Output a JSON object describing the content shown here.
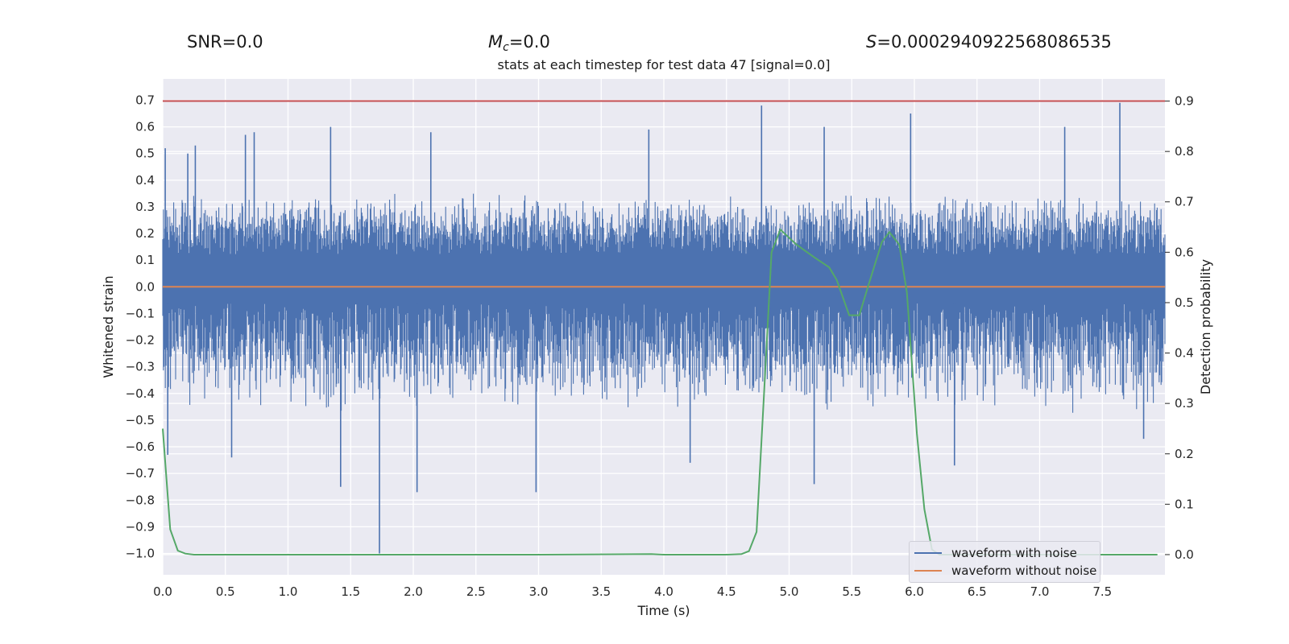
{
  "header": {
    "snr_label": "SNR=0.0",
    "mc_symbol": "M",
    "mc_subscript": "c",
    "mc_value": "=0.0",
    "s_symbol": "S",
    "s_value": "=0.0002940922568086535"
  },
  "chart_data": {
    "type": "line",
    "title": "stats at each timestep for test data 47 [signal=0.0]",
    "xlabel": "Time (s)",
    "ylabel": "Whitened strain",
    "y2label": "Detection probability",
    "xlim": [
      0.0,
      8.0
    ],
    "ylim": [
      -1.08,
      0.78
    ],
    "y2lim": [
      -0.04,
      0.944
    ],
    "xticks": [
      "0.0",
      "0.5",
      "1.0",
      "1.5",
      "2.0",
      "2.5",
      "3.0",
      "3.5",
      "4.0",
      "4.5",
      "5.0",
      "5.5",
      "6.0",
      "6.5",
      "7.0",
      "7.5"
    ],
    "yticks": [
      "0.7",
      "0.6",
      "0.5",
      "0.4",
      "0.3",
      "0.2",
      "0.1",
      "0.0",
      "−0.1",
      "−0.2",
      "−0.3",
      "−0.4",
      "−0.5",
      "−0.6",
      "−0.7",
      "−0.8",
      "−0.9",
      "−1.0"
    ],
    "y2ticks": [
      "0.9",
      "0.8",
      "0.7",
      "0.6",
      "0.5",
      "0.4",
      "0.3",
      "0.2",
      "0.1",
      "0.0"
    ],
    "grid": true,
    "legend_position": "bottom-right",
    "series": [
      {
        "name": "waveform with noise",
        "color": "#4c72b0",
        "axis": "left",
        "note_type": "dense noise",
        "envelope": {
          "core_min": -0.06,
          "core_max": 0.12,
          "typical_min": -0.42,
          "typical_max": 0.32
        },
        "spikes": [
          {
            "x": 0.02,
            "y": 0.52
          },
          {
            "x": 0.2,
            "y": 0.5
          },
          {
            "x": 0.26,
            "y": 0.53
          },
          {
            "x": 0.66,
            "y": 0.57
          },
          {
            "x": 0.73,
            "y": 0.58
          },
          {
            "x": 1.34,
            "y": 0.6
          },
          {
            "x": 2.14,
            "y": 0.58
          },
          {
            "x": 3.88,
            "y": 0.59
          },
          {
            "x": 4.78,
            "y": 0.68
          },
          {
            "x": 5.28,
            "y": 0.6
          },
          {
            "x": 5.97,
            "y": 0.65
          },
          {
            "x": 7.2,
            "y": 0.6
          },
          {
            "x": 7.64,
            "y": 0.69
          },
          {
            "x": 0.04,
            "y": -0.63
          },
          {
            "x": 0.55,
            "y": -0.64
          },
          {
            "x": 1.42,
            "y": -0.75
          },
          {
            "x": 1.73,
            "y": -1.0
          },
          {
            "x": 2.03,
            "y": -0.77
          },
          {
            "x": 2.98,
            "y": -0.77
          },
          {
            "x": 4.21,
            "y": -0.66
          },
          {
            "x": 5.2,
            "y": -0.74
          },
          {
            "x": 6.32,
            "y": -0.67
          },
          {
            "x": 7.83,
            "y": -0.57
          }
        ]
      },
      {
        "name": "waveform without noise",
        "color": "#dd8452",
        "axis": "left",
        "x": [
          0.0,
          8.0
        ],
        "y": [
          0.0,
          0.0
        ]
      },
      {
        "color": "#55a868",
        "axis": "right",
        "x": [
          0.0,
          0.06,
          0.12,
          0.18,
          0.25,
          0.5,
          1.0,
          2.0,
          3.0,
          3.9,
          4.0,
          4.5,
          4.62,
          4.68,
          4.74,
          4.8,
          4.86,
          4.93,
          5.06,
          5.2,
          5.32,
          5.38,
          5.48,
          5.56,
          5.64,
          5.74,
          5.8,
          5.88,
          5.94,
          6.02,
          6.08,
          6.14,
          6.2,
          6.5,
          7.0,
          7.5,
          7.94
        ],
        "y": [
          0.25,
          0.05,
          0.008,
          0.002,
          0.0,
          0.0,
          0.0,
          0.0,
          0.0,
          0.001,
          0.0,
          0.0,
          0.001,
          0.007,
          0.045,
          0.32,
          0.6,
          0.645,
          0.615,
          0.59,
          0.57,
          0.545,
          0.475,
          0.475,
          0.54,
          0.62,
          0.64,
          0.615,
          0.52,
          0.24,
          0.09,
          0.01,
          0.0,
          0.0,
          0.0,
          0.0,
          0.0
        ]
      },
      {
        "color": "#c44e52",
        "axis": "right",
        "x": [
          0.0,
          8.0
        ],
        "y": [
          0.9,
          0.9
        ]
      }
    ]
  }
}
